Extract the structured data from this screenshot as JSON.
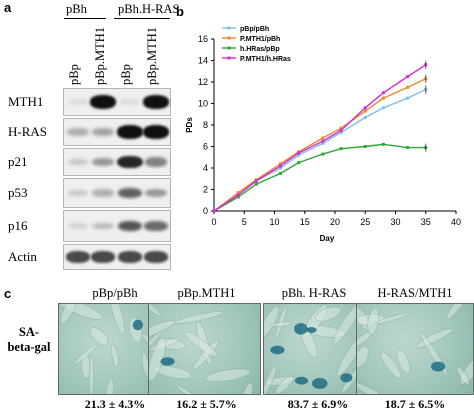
{
  "panel_a": {
    "letter": "a",
    "group_headers": [
      "pBh",
      "pBh.H-RAS"
    ],
    "lane_labels": [
      "pBp",
      "pBp.MTH1",
      "pBp",
      "pBp.MTH1"
    ],
    "blots": [
      {
        "label": "MTH1",
        "bands": [
          0.05,
          0.95,
          0.05,
          0.95
        ]
      },
      {
        "label": "H-RAS",
        "bands": [
          0.25,
          0.3,
          0.95,
          0.95
        ]
      },
      {
        "label": "p21",
        "bands": [
          0.15,
          0.35,
          0.85,
          0.45
        ]
      },
      {
        "label": "p53",
        "bands": [
          0.15,
          0.25,
          0.6,
          0.35
        ]
      },
      {
        "label": "p16",
        "bands": [
          0.1,
          0.2,
          0.65,
          0.55
        ]
      },
      {
        "label": "Actin",
        "bands": [
          0.7,
          0.7,
          0.7,
          0.7
        ]
      }
    ]
  },
  "panel_b": {
    "letter": "b",
    "chart_data": {
      "type": "line",
      "title": "",
      "xlabel": "Day",
      "ylabel": "PDs",
      "xlim": [
        0,
        40
      ],
      "ylim": [
        0,
        16
      ],
      "xticks": [
        0,
        5,
        10,
        15,
        20,
        25,
        30,
        35,
        40
      ],
      "yticks": [
        0,
        2,
        4,
        6,
        8,
        10,
        12,
        14,
        16
      ],
      "legend_position": "top-left",
      "grid": false,
      "series": [
        {
          "name": "pBp/pBh",
          "color": "#7fbfe8",
          "x": [
            0,
            4,
            7,
            11,
            14,
            18,
            21,
            25,
            28,
            32,
            35
          ],
          "y": [
            0,
            1.5,
            2.8,
            4.0,
            5.2,
            6.3,
            7.3,
            8.7,
            9.6,
            10.5,
            11.3
          ]
        },
        {
          "name": "P.MTH1/pBh",
          "color": "#f0882a",
          "x": [
            0,
            4,
            7,
            11,
            14,
            18,
            21,
            25,
            28,
            32,
            35
          ],
          "y": [
            0,
            1.7,
            2.9,
            4.4,
            5.5,
            6.8,
            7.7,
            9.3,
            10.5,
            11.5,
            12.3
          ]
        },
        {
          "name": "h.HRas/pBp",
          "color": "#2fa838",
          "x": [
            0,
            4,
            7,
            11,
            14,
            18,
            21,
            25,
            28,
            32,
            35
          ],
          "y": [
            0,
            1.3,
            2.5,
            3.5,
            4.5,
            5.3,
            5.8,
            6.0,
            6.2,
            5.9,
            5.9
          ]
        },
        {
          "name": "P.MTH1/h.HRas",
          "color": "#d22fd2",
          "x": [
            0,
            4,
            7,
            11,
            14,
            18,
            21,
            25,
            28,
            32,
            35
          ],
          "y": [
            0,
            1.5,
            2.8,
            4.2,
            5.4,
            6.5,
            7.5,
            9.6,
            11.0,
            12.5,
            13.6
          ]
        }
      ]
    }
  },
  "panel_c": {
    "letter": "c",
    "row_label_line1": "SA-",
    "row_label_line2": "beta-gal",
    "images": [
      {
        "title": "pBp/pBh",
        "percent": "21.3 ± 4.3%",
        "blue_cells": 1
      },
      {
        "title": "pBp.MTH1",
        "percent": "16.2 ± 5.7%",
        "blue_cells": 1
      },
      {
        "title": "pBh. H-RAS",
        "percent": "83.7 ± 6.9%",
        "blue_cells": 6
      },
      {
        "title": "H-RAS/MTH1",
        "percent": "18.7 ± 6.5%",
        "blue_cells": 1
      }
    ],
    "colors": {
      "stain_blue": "#1f6d83",
      "background_green": "#a3c7bd"
    }
  }
}
